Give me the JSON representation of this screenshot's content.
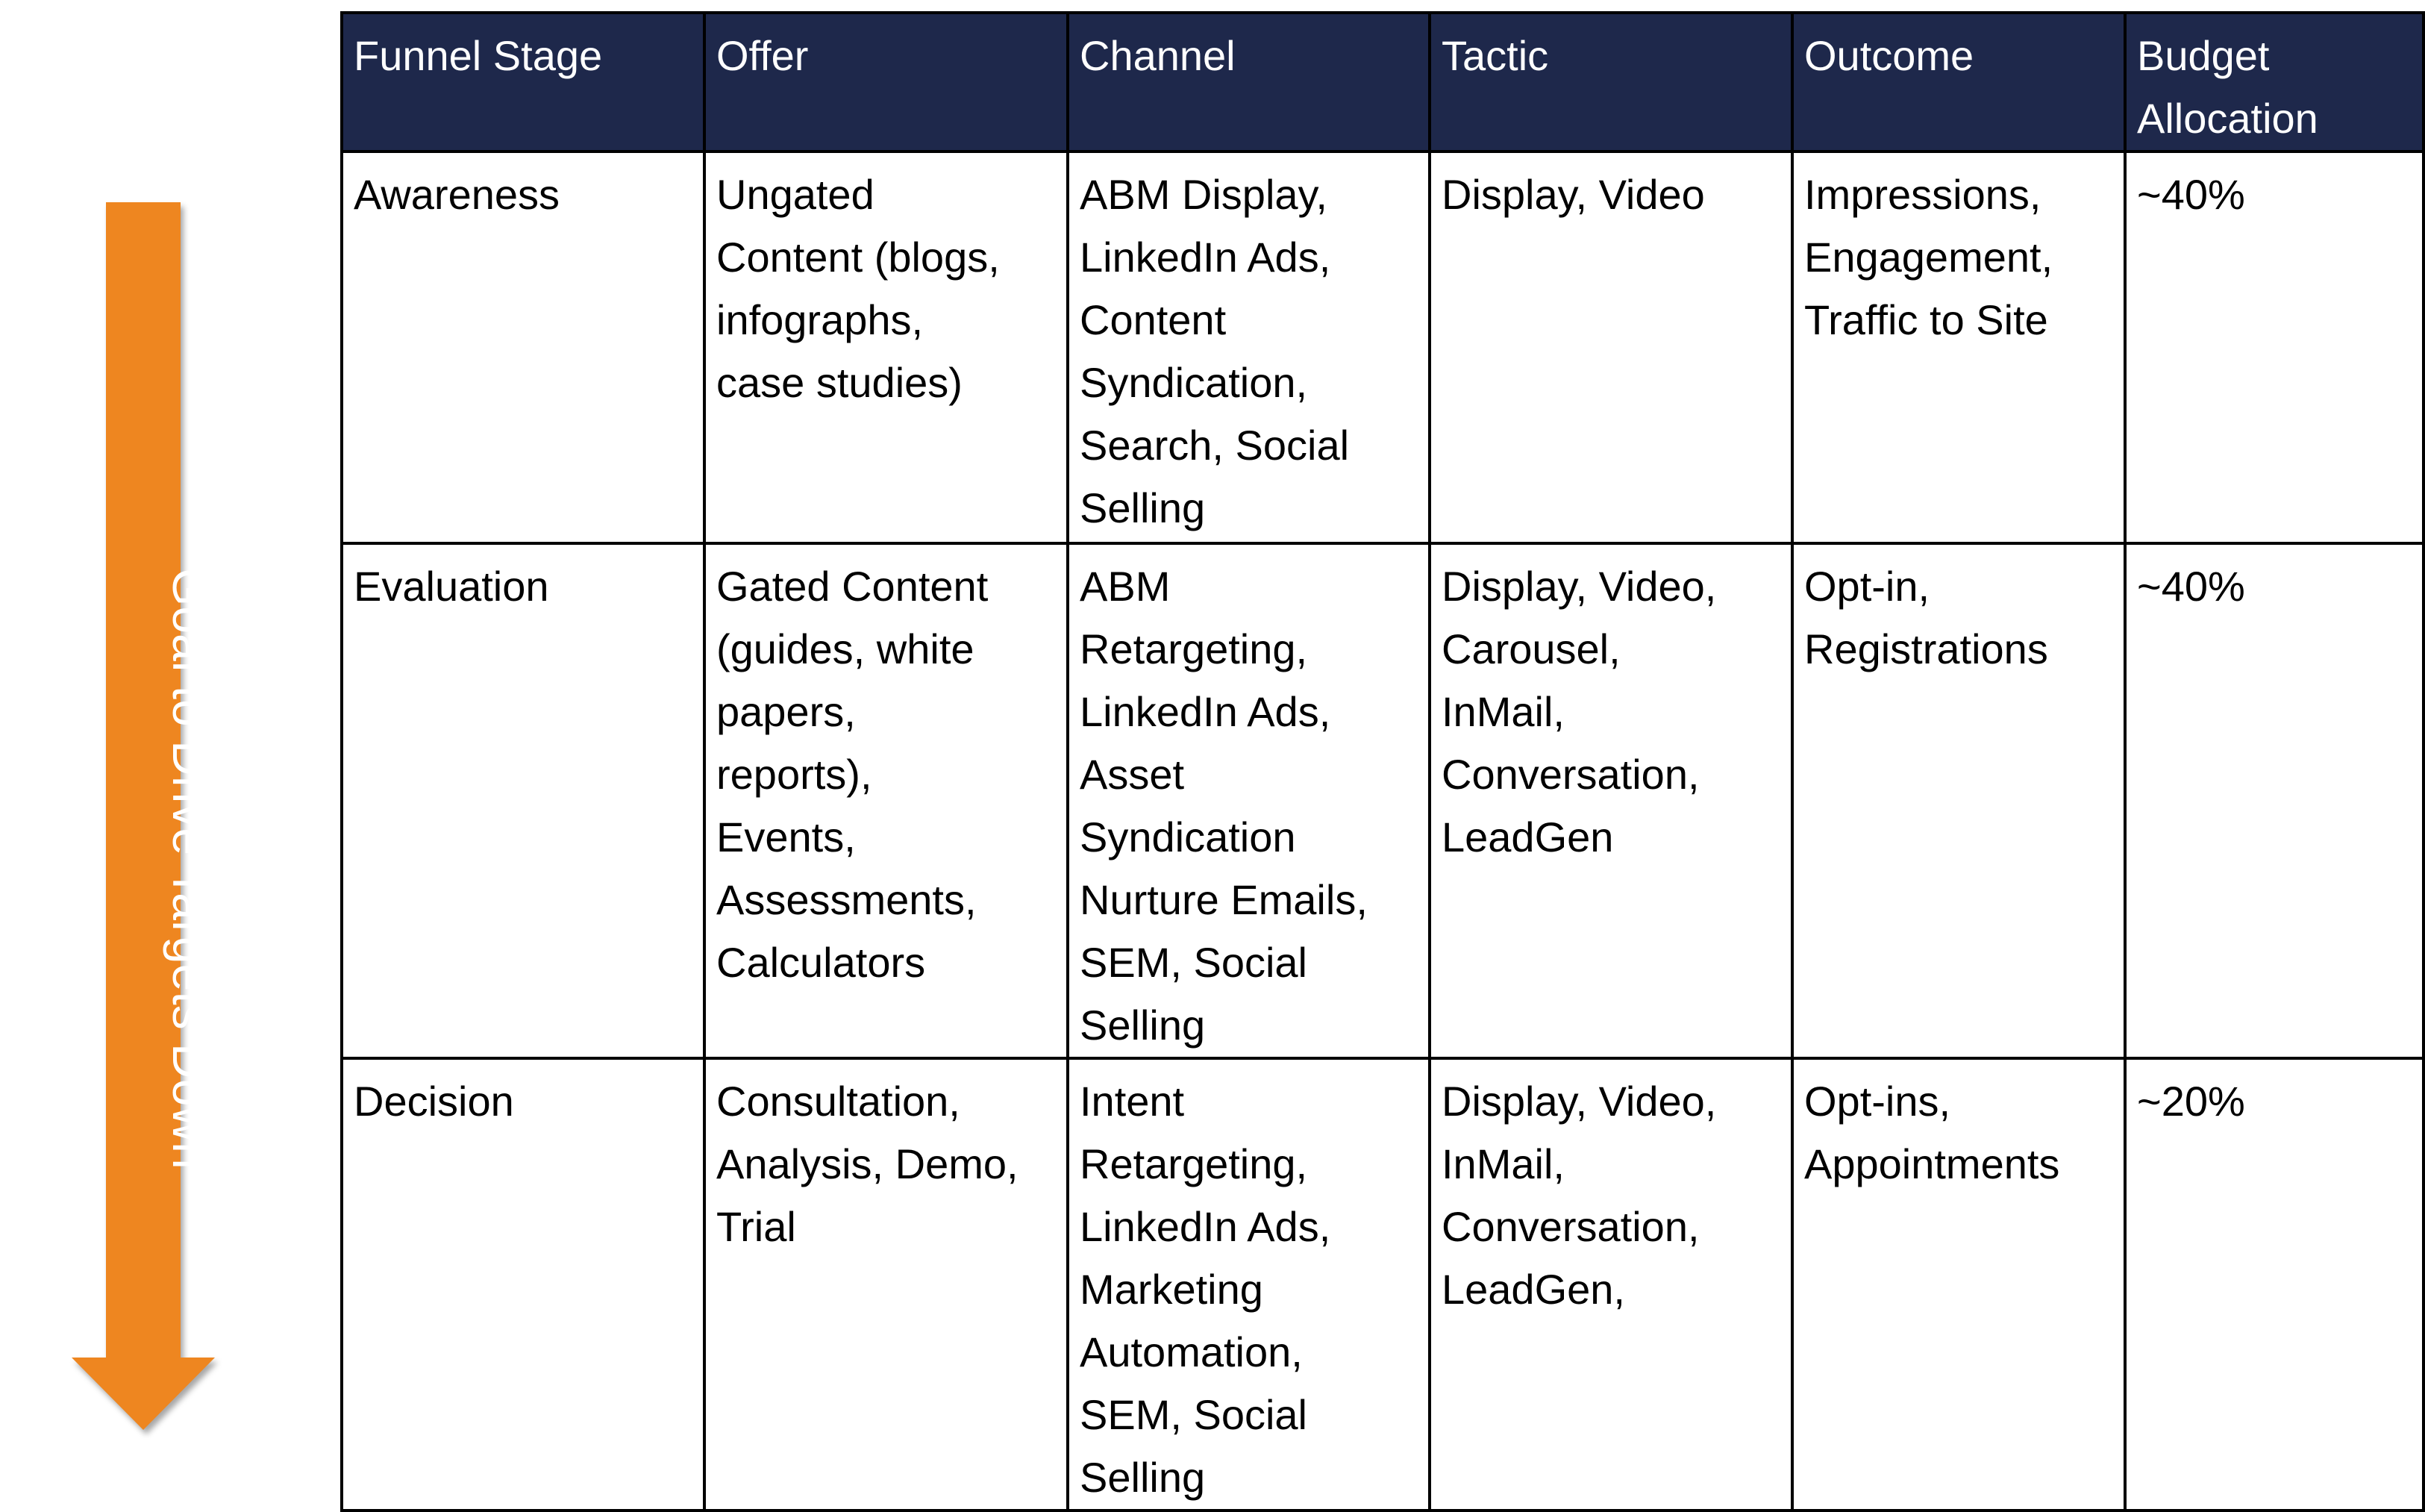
{
  "arrow": {
    "label": "Goal to Drive Targets Down",
    "color": "#ee8620"
  },
  "table": {
    "header_color": "#1e284b",
    "headers": [
      [
        "Funnel Stage"
      ],
      [
        "Offer"
      ],
      [
        "Channel"
      ],
      [
        "Tactic"
      ],
      [
        "Outcome"
      ],
      [
        "Budget",
        "Allocation"
      ]
    ],
    "rows": [
      [
        [
          "Awareness"
        ],
        [
          "Ungated",
          "Content (blogs,",
          "infographs,",
          "case studies)"
        ],
        [
          "ABM Display,",
          "LinkedIn Ads,",
          "Content",
          "Syndication,",
          "Search, Social",
          "Selling"
        ],
        [
          "Display, Video"
        ],
        [
          "Impressions,",
          "Engagement,",
          "Traffic to Site"
        ],
        [
          "~40%"
        ]
      ],
      [
        [
          "Evaluation"
        ],
        [
          "Gated Content",
          "(guides, white",
          "papers,",
          "reports),",
          "Events,",
          "Assessments,",
          "Calculators"
        ],
        [
          "ABM",
          "Retargeting,",
          "LinkedIn Ads,",
          "Asset",
          "Syndication",
          "Nurture Emails,",
          "SEM, Social",
          "Selling"
        ],
        [
          "Display, Video,",
          "Carousel,",
          "InMail,",
          "Conversation,",
          "LeadGen"
        ],
        [
          "Opt-in,",
          "Registrations"
        ],
        [
          "~40%"
        ]
      ],
      [
        [
          "Decision"
        ],
        [
          "Consultation,",
          "Analysis, Demo,",
          "Trial"
        ],
        [
          "Intent",
          "Retargeting,",
          "LinkedIn Ads,",
          "Marketing",
          "Automation,",
          "SEM, Social",
          "Selling"
        ],
        [
          "Display, Video,",
          "InMail,",
          "Conversation,",
          "LeadGen,"
        ],
        [
          "Opt-ins,",
          "Appointments"
        ],
        [
          "~20%"
        ]
      ]
    ]
  }
}
